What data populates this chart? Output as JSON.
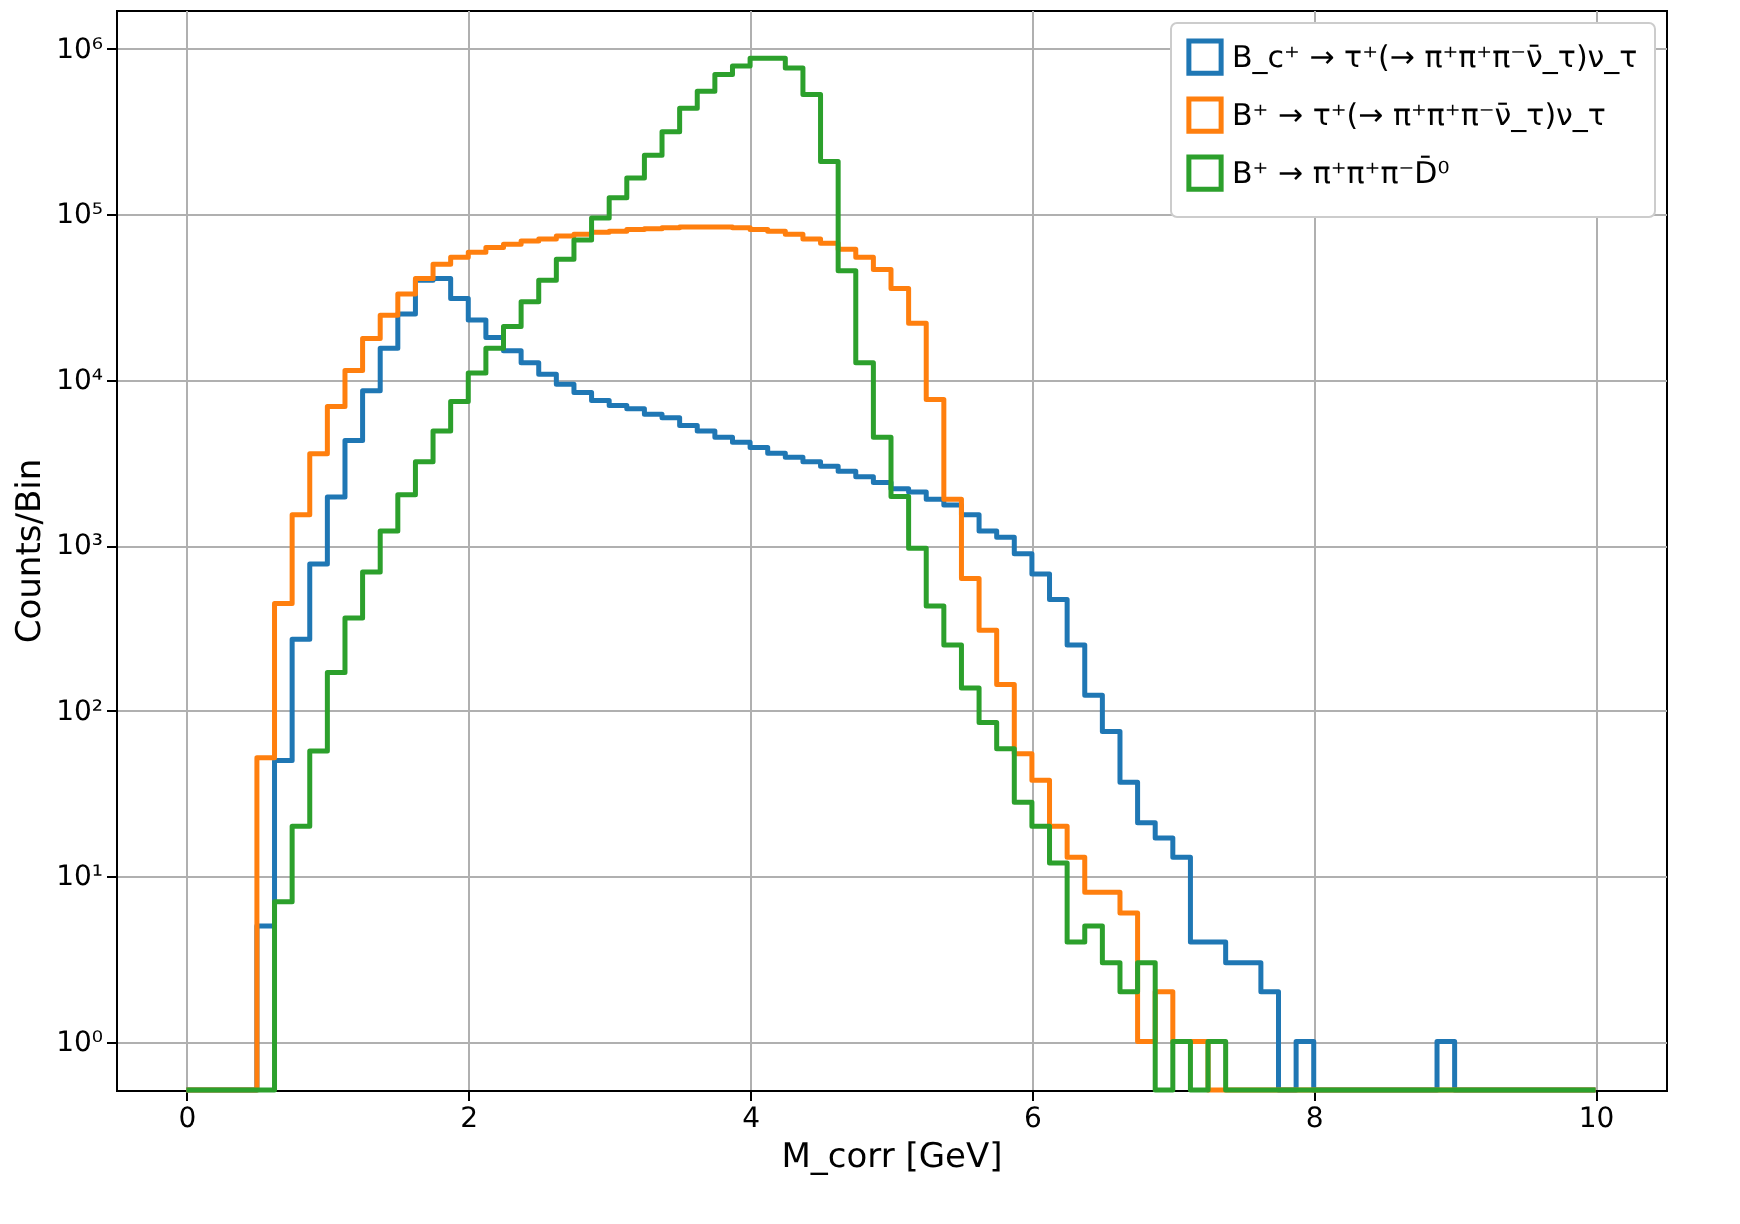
{
  "chart_data": {
    "type": "histogram",
    "xlabel": "M_corr [GeV]",
    "ylabel": "Counts/Bin",
    "bins": [
      0,
      0.125,
      0.25,
      0.375,
      0.5,
      0.625,
      0.75,
      0.875,
      1,
      1.125,
      1.25,
      1.375,
      1.5,
      1.625,
      1.75,
      1.875,
      2,
      2.125,
      2.25,
      2.375,
      2.5,
      2.625,
      2.75,
      2.875,
      3,
      3.125,
      3.25,
      3.375,
      3.5,
      3.625,
      3.75,
      3.875,
      4,
      4.125,
      4.25,
      4.375,
      4.5,
      4.625,
      4.75,
      4.875,
      5,
      5.125,
      5.25,
      5.375,
      5.5,
      5.625,
      5.75,
      5.875,
      6,
      6.125,
      6.25,
      6.375,
      6.5,
      6.625,
      6.75,
      6.875,
      7,
      7.125,
      7.25,
      7.375,
      7.5,
      7.625,
      7.75,
      7.875,
      8,
      8.125,
      8.25,
      8.375,
      8.5,
      8.625,
      8.75,
      8.875,
      9,
      9.125,
      9.25,
      9.375,
      9.5,
      9.625,
      9.75,
      9.875,
      10
    ],
    "series": [
      {
        "name": "B_c⁺ → τ⁺(→ π⁺π⁺π⁻ν̄_τ)ν_τ",
        "color": "#1f77b4",
        "values": [
          null,
          null,
          null,
          null,
          5,
          50,
          270,
          770,
          1960,
          4300,
          8600,
          15500,
          25000,
          40000,
          41000,
          31000,
          23000,
          18000,
          15000,
          12700,
          10800,
          9400,
          8400,
          7500,
          7000,
          6700,
          6200,
          5900,
          5300,
          4900,
          4500,
          4200,
          3900,
          3600,
          3400,
          3200,
          3000,
          2800,
          2600,
          2400,
          2200,
          2100,
          1900,
          1750,
          1530,
          1220,
          1120,
          890,
          670,
          470,
          250,
          124,
          75,
          37,
          21,
          17,
          13,
          4,
          4,
          3,
          3,
          2,
          null,
          1,
          null,
          null,
          null,
          null,
          null,
          null,
          null,
          1,
          null,
          null,
          null,
          null,
          null,
          null,
          null,
          null
        ]
      },
      {
        "name": "B⁺ → τ⁺(→ π⁺π⁺π⁻ν̄_τ)ν_τ",
        "color": "#ff7f0e",
        "values": [
          null,
          null,
          null,
          null,
          52,
          445,
          1530,
          3570,
          6900,
          11400,
          17800,
          24600,
          33000,
          41000,
          50000,
          55000,
          59000,
          63000,
          66000,
          69000,
          71000,
          74000,
          76000,
          78000,
          79000,
          81000,
          82000,
          83000,
          84000,
          84000,
          84000,
          83000,
          81000,
          79000,
          76000,
          71000,
          67000,
          61500,
          55000,
          46500,
          35700,
          22000,
          7600,
          1900,
          630,
          307,
          144,
          55,
          38,
          20,
          13,
          8,
          8,
          6,
          1,
          2,
          1,
          1,
          null,
          null,
          null,
          null,
          null,
          null,
          null,
          null,
          null,
          null,
          null,
          null,
          null,
          null,
          null,
          null,
          null,
          null,
          null,
          null,
          null,
          null
        ]
      },
      {
        "name": "B⁺ → π⁺π⁺π⁻D̄⁰",
        "color": "#2ca02c",
        "values": [
          null,
          null,
          null,
          null,
          null,
          7,
          20,
          57,
          170,
          363,
          690,
          1220,
          2020,
          3200,
          4900,
          7400,
          11000,
          15500,
          21000,
          29700,
          40000,
          53500,
          70000,
          95000,
          126000,
          166000,
          228000,
          316000,
          438000,
          556000,
          700000,
          790000,
          880000,
          880000,
          767000,
          531000,
          209000,
          45700,
          12700,
          4500,
          1970,
          960,
          430,
          250,
          137,
          85,
          59,
          28,
          20,
          12,
          4,
          5,
          3,
          2,
          3,
          null,
          1,
          null,
          1,
          null,
          null,
          null,
          null,
          null,
          null,
          null,
          null,
          null,
          null,
          null,
          null,
          null,
          null,
          null,
          null,
          null,
          null,
          null,
          null,
          null
        ]
      }
    ],
    "xlim": [
      -0.5,
      10.5
    ],
    "xticks": [
      0,
      2,
      4,
      6,
      8,
      10
    ],
    "ylim": [
      0.51,
      1720000
    ],
    "yticks": [
      {
        "value": 1,
        "label": "10⁰"
      },
      {
        "value": 10,
        "label": "10¹"
      },
      {
        "value": 100,
        "label": "10²"
      },
      {
        "value": 1000,
        "label": "10³"
      },
      {
        "value": 10000,
        "label": "10⁴"
      },
      {
        "value": 100000,
        "label": "10⁵"
      },
      {
        "value": 1000000,
        "label": "10⁶"
      }
    ],
    "log": true,
    "grid": true,
    "legend": "top right"
  }
}
